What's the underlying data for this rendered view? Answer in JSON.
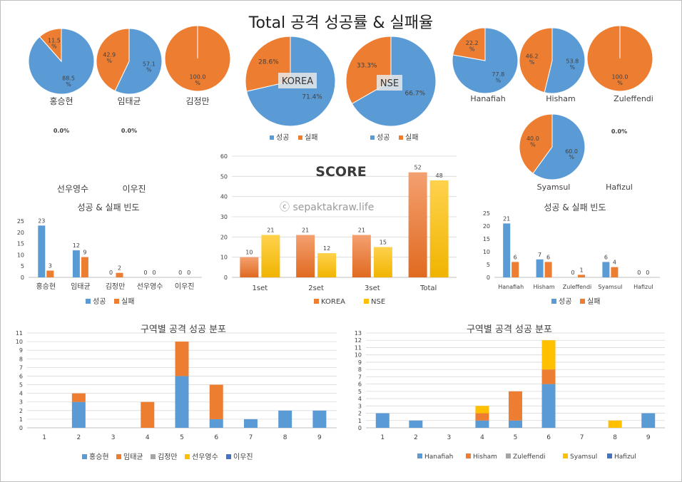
{
  "title": "Total 공격 성공률 & 실패율",
  "watermark": "ⓒ sepaktakraw.life",
  "colors": {
    "success": "#5b9bd5",
    "fail": "#ed7d31",
    "korea": "#ed7d31",
    "nse": "#ffc000",
    "gray": "#a5a5a5",
    "yellow": "#ffc000",
    "navy": "#4472c4"
  },
  "chart_data": [
    {
      "type": "pie",
      "id": "pie-hong",
      "label": "홍승현",
      "slices": [
        {
          "name": "성공",
          "value": 88.5,
          "label": "88.5\n%"
        },
        {
          "name": "실패",
          "value": 11.5,
          "label": "11.5\n%"
        }
      ]
    },
    {
      "type": "pie",
      "id": "pie-im",
      "label": "임태균",
      "slices": [
        {
          "name": "성공",
          "value": 57.1,
          "label": "57.1\n%"
        },
        {
          "name": "실패",
          "value": 42.9,
          "label": "42.9\n%"
        }
      ]
    },
    {
      "type": "pie",
      "id": "pie-kim",
      "label": "김정만",
      "slices": [
        {
          "name": "성공",
          "value": 0.0,
          "label": "0.0%"
        },
        {
          "name": "실패",
          "value": 100.0,
          "label": "100.0\n%"
        }
      ]
    },
    {
      "type": "pie",
      "id": "pie-sun",
      "label": "",
      "slices": [],
      "empty_label": "0.0%"
    },
    {
      "type": "pie",
      "id": "pie-lee",
      "label": "",
      "slices": [],
      "empty_label": "0.0%"
    },
    {
      "type": "pie",
      "id": "pie-korea",
      "label": "KOREA",
      "legend": [
        "성공",
        "실패"
      ],
      "slices": [
        {
          "name": "성공",
          "value": 71.4,
          "label": "71.4%"
        },
        {
          "name": "실패",
          "value": 28.6,
          "label": "28.6%"
        }
      ]
    },
    {
      "type": "pie",
      "id": "pie-nse",
      "label": "NSE",
      "legend": [
        "성공",
        "실패"
      ],
      "slices": [
        {
          "name": "성공",
          "value": 66.7,
          "label": "66.7%"
        },
        {
          "name": "실패",
          "value": 33.3,
          "label": "33.3%"
        }
      ]
    },
    {
      "type": "pie",
      "id": "pie-hanafiah",
      "label": "Hanafiah",
      "slices": [
        {
          "name": "성공",
          "value": 77.8,
          "label": "77.8\n%"
        },
        {
          "name": "실패",
          "value": 22.2,
          "label": "22.2\n%"
        }
      ]
    },
    {
      "type": "pie",
      "id": "pie-hisham",
      "label": "Hisham",
      "slices": [
        {
          "name": "성공",
          "value": 53.8,
          "label": "53.8\n%"
        },
        {
          "name": "실패",
          "value": 46.2,
          "label": "46.2\n%"
        }
      ]
    },
    {
      "type": "pie",
      "id": "pie-zuleffendi",
      "label": "Zuleffendi",
      "slices": [
        {
          "name": "성공",
          "value": 0.0,
          "label": "0.0%"
        },
        {
          "name": "실패",
          "value": 100.0,
          "label": "100.0\n%"
        }
      ]
    },
    {
      "type": "pie",
      "id": "pie-syamsul",
      "label": "Syamsul",
      "slices": [
        {
          "name": "성공",
          "value": 60.0,
          "label": "60.0\n%"
        },
        {
          "name": "실패",
          "value": 40.0,
          "label": "40.0\n%"
        }
      ]
    },
    {
      "type": "pie",
      "id": "pie-hafizul",
      "label": "Hafizul",
      "slices": [],
      "empty_label": "0.0%"
    },
    {
      "type": "bar",
      "id": "bar-korea",
      "title": "성공 & 실패 빈도",
      "header_names": [
        "선우영수",
        "이우진"
      ],
      "categories": [
        "홍승현",
        "임태균",
        "김정만",
        "선우영수",
        "이우진"
      ],
      "series": [
        {
          "name": "성공",
          "values": [
            23,
            12,
            0,
            0,
            0
          ]
        },
        {
          "name": "실패",
          "values": [
            3,
            9,
            2,
            0,
            0
          ]
        }
      ],
      "ylim": [
        0,
        25
      ],
      "yticks": [
        0,
        5,
        10,
        15,
        20,
        25
      ]
    },
    {
      "type": "bar",
      "id": "bar-score",
      "title": "SCORE",
      "categories": [
        "1set",
        "2set",
        "3set",
        "Total"
      ],
      "series": [
        {
          "name": "KOREA",
          "values": [
            10,
            21,
            21,
            52
          ]
        },
        {
          "name": "NSE",
          "values": [
            21,
            12,
            15,
            48
          ]
        }
      ],
      "ylim": [
        0,
        60
      ],
      "yticks": [
        0,
        10,
        20,
        30,
        40,
        50,
        60
      ]
    },
    {
      "type": "bar",
      "id": "bar-nse",
      "title": "성공 & 실패 빈도",
      "categories": [
        "Hanafiah",
        "Hisham",
        "Zuleffendi",
        "Syamsul",
        "Hafizul"
      ],
      "series": [
        {
          "name": "성공",
          "values": [
            21,
            7,
            0,
            6,
            0
          ]
        },
        {
          "name": "실패",
          "values": [
            6,
            6,
            1,
            4,
            0
          ]
        }
      ],
      "ylim": [
        0,
        25
      ],
      "yticks": [
        0,
        5,
        10,
        15,
        20,
        25
      ]
    },
    {
      "type": "bar",
      "stacked": true,
      "id": "zone-korea",
      "title": "구역별 공격 성공 분포",
      "categories": [
        "1",
        "2",
        "3",
        "4",
        "5",
        "6",
        "7",
        "8",
        "9"
      ],
      "series": [
        {
          "name": "홍승현",
          "values": [
            0,
            3,
            0,
            0,
            6,
            1,
            1,
            2,
            2
          ]
        },
        {
          "name": "임태균",
          "values": [
            0,
            1,
            0,
            3,
            4,
            4,
            0,
            0,
            0
          ]
        },
        {
          "name": "김정만",
          "values": [
            0,
            0,
            0,
            0,
            0,
            0,
            0,
            0,
            0
          ]
        },
        {
          "name": "선우영수",
          "values": [
            0,
            0,
            0,
            0,
            0,
            0,
            0,
            0,
            0
          ]
        },
        {
          "name": "이우진",
          "values": [
            0,
            0,
            0,
            0,
            0,
            0,
            0,
            0,
            0
          ]
        }
      ],
      "ylim": [
        0,
        11
      ],
      "yticks": [
        0,
        1,
        2,
        3,
        4,
        5,
        6,
        7,
        8,
        9,
        10,
        11
      ]
    },
    {
      "type": "bar",
      "stacked": true,
      "id": "zone-nse",
      "title": "구역별 공격 성공 분포",
      "categories": [
        "1",
        "2",
        "3",
        "4",
        "5",
        "6",
        "7",
        "8",
        "9"
      ],
      "series": [
        {
          "name": "Hanafiah",
          "values": [
            2,
            1,
            0,
            1,
            1,
            6,
            0,
            0,
            2
          ]
        },
        {
          "name": "Hisham",
          "values": [
            0,
            0,
            0,
            1,
            4,
            2,
            0,
            0,
            0
          ]
        },
        {
          "name": "Zuleffendi",
          "values": [
            0,
            0,
            0,
            0,
            0,
            0,
            0,
            0,
            0
          ]
        },
        {
          "name": "Syamsul",
          "values": [
            0,
            0,
            0,
            1,
            0,
            4,
            0,
            1,
            0
          ]
        },
        {
          "name": "Hafizul",
          "values": [
            0,
            0,
            0,
            0,
            0,
            0,
            0,
            0,
            0
          ]
        }
      ],
      "ylim": [
        0,
        13
      ],
      "yticks": [
        0,
        1,
        2,
        3,
        4,
        5,
        6,
        7,
        8,
        9,
        10,
        11,
        12,
        13
      ]
    }
  ]
}
